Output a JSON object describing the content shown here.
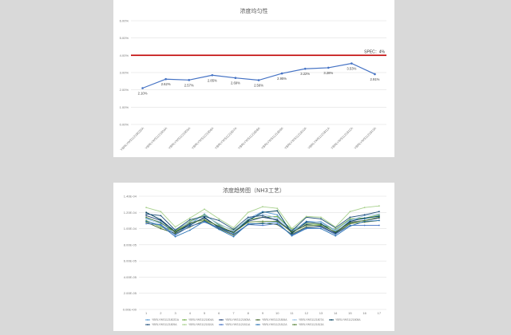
{
  "chart_data": [
    {
      "type": "line",
      "title": "浓度均匀性",
      "ylim": [
        0,
        6
      ],
      "yticks": [
        "0.00%",
        "1.00%",
        "2.00%",
        "3.00%",
        "4.00%",
        "5.00%",
        "6.00%"
      ],
      "categories": [
        "YBRLYWS1121802DA",
        "YBRLYWS1121804A",
        "YBRLYWS1121805A",
        "YBRLYWS1121806A",
        "YBRLYWS1121807A",
        "YBRLYWS1121808A",
        "YBRLYWS1121809A",
        "YBRLYWS1121810A",
        "YBRLYWS1121811A",
        "YBRLYWS1121812A",
        "YBRLYWS1121813A"
      ],
      "series": [
        {
          "values": [
            2.1,
            2.62,
            2.57,
            2.85,
            2.69,
            2.56,
            2.95,
            3.22,
            3.28,
            3.53,
            2.91
          ]
        }
      ],
      "data_labels": [
        "2.10%",
        "2.62%",
        "2.57%",
        "2.85%",
        "2.69%",
        "2.56%",
        "2.95%",
        "3.22%",
        "3.28%",
        "3.53%",
        "2.91%"
      ],
      "reference_line": {
        "value": 4.0,
        "label": "SPEC：4%"
      },
      "colors": {
        "series": "#4472c4",
        "spec": "#c00000"
      },
      "grid": true,
      "legend": "none"
    },
    {
      "type": "line",
      "title": "浓度趋势图（NH3工艺）",
      "ylim": [
        1e-05,
        0.00014
      ],
      "yticks": [
        "0.00E+00",
        "2.00E-05",
        "4.00E-05",
        "6.00E-05",
        "8.00E-05",
        "1.00E-04",
        "1.20E-04",
        "1.40E-04"
      ],
      "x": [
        1,
        2,
        3,
        4,
        5,
        6,
        7,
        8,
        9,
        10,
        11,
        12,
        13,
        14,
        15,
        16,
        17
      ],
      "grid": true,
      "legend": "bottom",
      "series": [
        {
          "name": "YBRLYWS1121802DA",
          "color": "#5b9bd5",
          "values": [
            11.3,
            10.8,
            9.3,
            10.5,
            11.8,
            10.4,
            9.4,
            11.2,
            12.1,
            11.7,
            9.6,
            10.9,
            10.8,
            9.7,
            11.1,
            11.2,
            11.6
          ]
        },
        {
          "name": "YBRLYWS1121804A",
          "color": "#70ad47",
          "values": [
            11.0,
            10.2,
            9.7,
            10.9,
            11.7,
            10.5,
            9.8,
            11.1,
            11.4,
            11.5,
            9.9,
            10.6,
            10.5,
            9.9,
            11.2,
            11.3,
            11.7
          ]
        },
        {
          "name": "YBRLYWS1121805A",
          "color": "#264478",
          "values": [
            11.6,
            11.0,
            9.5,
            10.6,
            11.3,
            10.2,
            9.6,
            10.9,
            11.4,
            11.1,
            9.5,
            10.5,
            10.3,
            9.4,
            10.8,
            11.0,
            11.3
          ]
        },
        {
          "name": "YBRLYWS1121806A",
          "color": "#43682b",
          "values": [
            10.8,
            10.0,
            9.4,
            10.2,
            11.0,
            10.0,
            9.2,
            10.5,
            10.7,
            10.5,
            9.3,
            10.2,
            10.2,
            9.3,
            10.6,
            10.8,
            11.0
          ]
        },
        {
          "name": "YBRLYWS1121807A",
          "color": "#9dc3e6",
          "values": [
            11.2,
            10.6,
            9.9,
            10.8,
            11.6,
            10.6,
            9.7,
            11.2,
            11.8,
            11.3,
            9.8,
            10.7,
            10.9,
            9.8,
            11.0,
            11.6,
            11.8
          ]
        },
        {
          "name": "YBRLYWS1121808A",
          "color": "#003f5c",
          "values": [
            12.0,
            11.1,
            9.6,
            10.4,
            11.4,
            10.1,
            9.5,
            11.0,
            12.0,
            12.2,
            9.4,
            10.8,
            10.6,
            9.5,
            10.9,
            11.3,
            11.5
          ]
        },
        {
          "name": "YBRLYWS1121809A",
          "color": "#1f4e79",
          "values": [
            11.8,
            11.6,
            9.8,
            11.1,
            11.5,
            11.0,
            9.9,
            11.4,
            11.6,
            11.0,
            9.7,
            11.4,
            11.2,
            10.1,
            11.4,
            11.7,
            12.1
          ]
        },
        {
          "name": "YBRLYWS1121810A",
          "color": "#a9d18e",
          "values": [
            12.6,
            12.1,
            10.2,
            11.3,
            12.4,
            11.2,
            10.1,
            12.0,
            12.7,
            12.5,
            10.0,
            11.5,
            11.4,
            10.2,
            12.1,
            12.6,
            12.8
          ]
        },
        {
          "name": "YBRLYWS1121811A",
          "color": "#4472c4",
          "values": [
            10.6,
            10.5,
            9.2,
            10.3,
            10.8,
            10.1,
            9.3,
            10.5,
            10.4,
            10.6,
            9.2,
            10.1,
            10.2,
            9.3,
            10.4,
            10.4,
            10.4
          ]
        },
        {
          "name": "YBRLYWS1121812A",
          "color": "#2e75b6",
          "values": [
            10.9,
            10.4,
            9.0,
            9.8,
            10.9,
            9.9,
            9.0,
            10.6,
            10.6,
            10.8,
            9.1,
            10.0,
            10.0,
            9.1,
            10.3,
            10.9,
            11.0
          ]
        },
        {
          "name": "YBRLYWS1121813A",
          "color": "#548235",
          "values": [
            11.4,
            10.7,
            9.6,
            10.7,
            11.1,
            10.3,
            9.5,
            10.8,
            10.9,
            10.9,
            9.6,
            10.4,
            10.4,
            9.6,
            10.7,
            11.0,
            11.4
          ]
        }
      ]
    }
  ]
}
